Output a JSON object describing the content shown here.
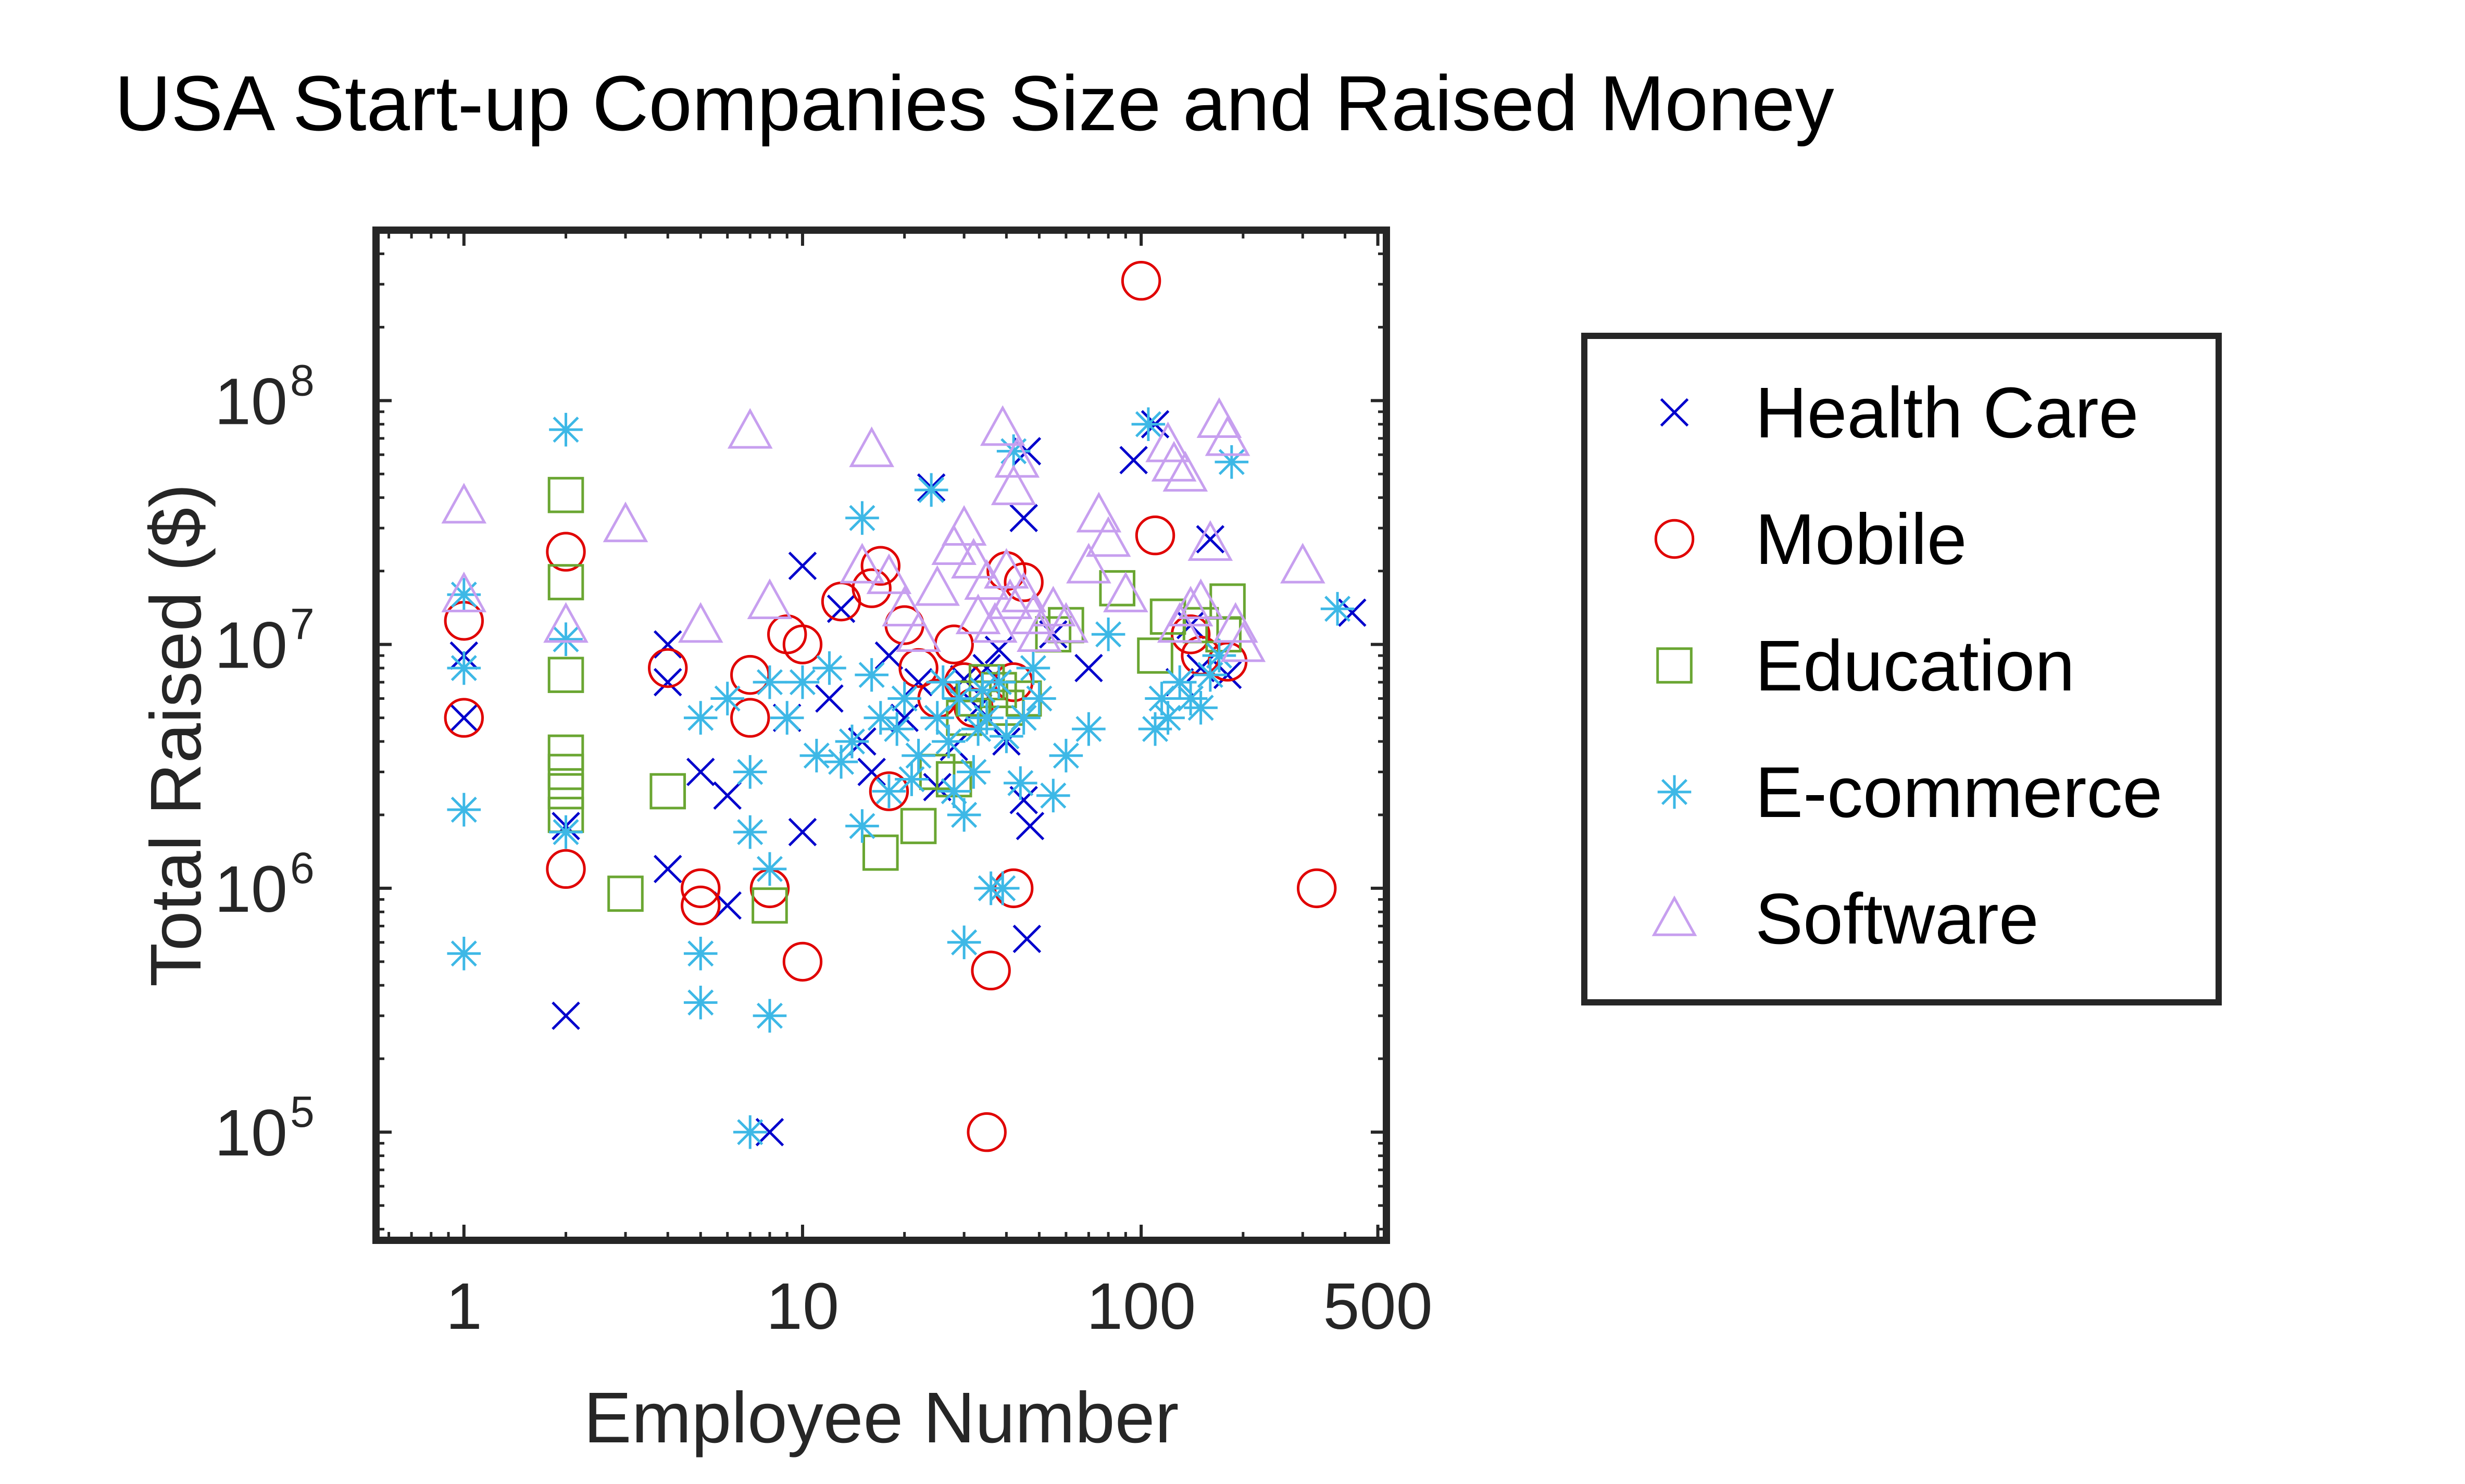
{
  "chart_data": {
    "type": "scatter",
    "title": "USA Start-up Companies Size and Raised Money",
    "xlabel": "Employee Number",
    "ylabel": "Total Raised ($)",
    "xscale": "log",
    "yscale": "log",
    "xlim": [
      0.55,
      530
    ],
    "ylim": [
      36000,
      500000000
    ],
    "xticks": [
      {
        "value": 1,
        "label": "1"
      },
      {
        "value": 10,
        "label": "10"
      },
      {
        "value": 100,
        "label": "100"
      },
      {
        "value": 500,
        "label": "500"
      }
    ],
    "yticks": [
      {
        "value": 100000,
        "base": "10",
        "exp": "5"
      },
      {
        "value": 1000000,
        "base": "10",
        "exp": "6"
      },
      {
        "value": 10000000,
        "base": "10",
        "exp": "7"
      },
      {
        "value": 100000000,
        "base": "10",
        "exp": "8"
      }
    ],
    "grid": false,
    "legend_position": "right",
    "series": [
      {
        "name": "Health Care",
        "marker": "x",
        "color": "#0000CC",
        "points": [
          [
            1,
            9000000
          ],
          [
            1,
            5000000
          ],
          [
            2,
            1800000
          ],
          [
            2,
            300000
          ],
          [
            4,
            7000000
          ],
          [
            4,
            10000000
          ],
          [
            4,
            1200000
          ],
          [
            5,
            3000000
          ],
          [
            6,
            2400000
          ],
          [
            6,
            850000
          ],
          [
            8,
            100000
          ],
          [
            9,
            5000000
          ],
          [
            10,
            21000000
          ],
          [
            10,
            1700000
          ],
          [
            12,
            6000000
          ],
          [
            13,
            14000000
          ],
          [
            15,
            4000000
          ],
          [
            16,
            3000000
          ],
          [
            18,
            9000000
          ],
          [
            20,
            5000000
          ],
          [
            22,
            7000000
          ],
          [
            24,
            44000000
          ],
          [
            25,
            2600000
          ],
          [
            28,
            3800000
          ],
          [
            30,
            7200000
          ],
          [
            33,
            5500000
          ],
          [
            35,
            8000000
          ],
          [
            38,
            9500000
          ],
          [
            40,
            4000000
          ],
          [
            45,
            33000000
          ],
          [
            46,
            62000000
          ],
          [
            45,
            2300000
          ],
          [
            47,
            1800000
          ],
          [
            46,
            620000
          ],
          [
            55,
            11000000
          ],
          [
            70,
            8000000
          ],
          [
            95,
            57000000
          ],
          [
            110,
            80000000
          ],
          [
            130,
            7000000
          ],
          [
            140,
            12000000
          ],
          [
            150,
            8000000
          ],
          [
            160,
            27000000
          ],
          [
            180,
            7500000
          ],
          [
            420,
            13500000
          ]
        ]
      },
      {
        "name": "Mobile",
        "marker": "o",
        "color": "#E00000",
        "points": [
          [
            1,
            12500000
          ],
          [
            1,
            5000000
          ],
          [
            2,
            24000000
          ],
          [
            2,
            1200000
          ],
          [
            4,
            8000000
          ],
          [
            5,
            1000000
          ],
          [
            5,
            850000
          ],
          [
            7,
            7500000
          ],
          [
            7,
            5000000
          ],
          [
            8,
            1000000
          ],
          [
            9,
            11000000
          ],
          [
            10,
            10000000
          ],
          [
            10,
            500000
          ],
          [
            13,
            15000000
          ],
          [
            16,
            17000000
          ],
          [
            17,
            21000000
          ],
          [
            18,
            2500000
          ],
          [
            20,
            12000000
          ],
          [
            22,
            8000000
          ],
          [
            25,
            6000000
          ],
          [
            28,
            10000000
          ],
          [
            30,
            7000000
          ],
          [
            32,
            5500000
          ],
          [
            35,
            100000
          ],
          [
            36,
            460000
          ],
          [
            40,
            20000000
          ],
          [
            42,
            7000000
          ],
          [
            45,
            18000000
          ],
          [
            42,
            1000000
          ],
          [
            100,
            310000000
          ],
          [
            110,
            28000000
          ],
          [
            140,
            11000000
          ],
          [
            150,
            9000000
          ],
          [
            180,
            8500000
          ],
          [
            330,
            1000000
          ]
        ]
      },
      {
        "name": "Education",
        "marker": "square",
        "color": "#6AA632",
        "points": [
          [
            2,
            41000000
          ],
          [
            2,
            18000000
          ],
          [
            2,
            7500000
          ],
          [
            2,
            3600000
          ],
          [
            2,
            3000000
          ],
          [
            2,
            2500000
          ],
          [
            2,
            2000000
          ],
          [
            3,
            950000
          ],
          [
            4,
            2500000
          ],
          [
            8,
            850000
          ],
          [
            17,
            1400000
          ],
          [
            22,
            1800000
          ],
          [
            25,
            3000000
          ],
          [
            28,
            2800000
          ],
          [
            30,
            5000000
          ],
          [
            32,
            6000000
          ],
          [
            35,
            7000000
          ],
          [
            38,
            6500000
          ],
          [
            40,
            5500000
          ],
          [
            45,
            6000000
          ],
          [
            55,
            11000000
          ],
          [
            60,
            12000000
          ],
          [
            85,
            17000000
          ],
          [
            110,
            9000000
          ],
          [
            120,
            13000000
          ],
          [
            150,
            12000000
          ],
          [
            175,
            11000000
          ],
          [
            180,
            15000000
          ]
        ]
      },
      {
        "name": "E-commerce",
        "marker": "asterisk",
        "color": "#3DB8E6",
        "points": [
          [
            1,
            16000000
          ],
          [
            1,
            8000000
          ],
          [
            1,
            2100000
          ],
          [
            1,
            540000
          ],
          [
            2,
            76000000
          ],
          [
            2,
            10500000
          ],
          [
            2,
            1700000
          ],
          [
            5,
            5000000
          ],
          [
            5,
            540000
          ],
          [
            5,
            340000
          ],
          [
            6,
            6000000
          ],
          [
            7,
            3000000
          ],
          [
            7,
            1700000
          ],
          [
            7,
            100000
          ],
          [
            8,
            7000000
          ],
          [
            8,
            1200000
          ],
          [
            8,
            300000
          ],
          [
            9,
            5000000
          ],
          [
            10,
            7000000
          ],
          [
            11,
            3500000
          ],
          [
            12,
            8000000
          ],
          [
            13,
            3300000
          ],
          [
            14,
            4000000
          ],
          [
            15,
            33000000
          ],
          [
            15,
            1800000
          ],
          [
            16,
            7500000
          ],
          [
            17,
            5000000
          ],
          [
            18,
            2500000
          ],
          [
            19,
            4500000
          ],
          [
            20,
            6000000
          ],
          [
            21,
            2800000
          ],
          [
            22,
            3500000
          ],
          [
            24,
            43000000
          ],
          [
            25,
            5000000
          ],
          [
            26,
            7000000
          ],
          [
            27,
            4000000
          ],
          [
            28,
            2500000
          ],
          [
            29,
            6000000
          ],
          [
            30,
            600000
          ],
          [
            30,
            2000000
          ],
          [
            32,
            3000000
          ],
          [
            33,
            4500000
          ],
          [
            34,
            6500000
          ],
          [
            35,
            5000000
          ],
          [
            36,
            1000000
          ],
          [
            38,
            7000000
          ],
          [
            39,
            1000000
          ],
          [
            40,
            4200000
          ],
          [
            42,
            62000000
          ],
          [
            44,
            2700000
          ],
          [
            45,
            5000000
          ],
          [
            48,
            8000000
          ],
          [
            50,
            6000000
          ],
          [
            55,
            2400000
          ],
          [
            60,
            3500000
          ],
          [
            70,
            4500000
          ],
          [
            80,
            11000000
          ],
          [
            105,
            80000000
          ],
          [
            110,
            4500000
          ],
          [
            115,
            6000000
          ],
          [
            120,
            5000000
          ],
          [
            130,
            7000000
          ],
          [
            140,
            6000000
          ],
          [
            150,
            5500000
          ],
          [
            160,
            7500000
          ],
          [
            170,
            9000000
          ],
          [
            185,
            56000000
          ],
          [
            380,
            14000000
          ]
        ]
      },
      {
        "name": "Software",
        "marker": "triangle",
        "color": "#C79FEF",
        "points": [
          [
            1,
            37000000
          ],
          [
            1,
            16000000
          ],
          [
            2,
            12000000
          ],
          [
            3,
            31000000
          ],
          [
            5,
            12000000
          ],
          [
            7,
            75000000
          ],
          [
            8,
            15000000
          ],
          [
            15,
            21000000
          ],
          [
            16,
            63000000
          ],
          [
            18,
            19000000
          ],
          [
            20,
            14000000
          ],
          [
            22,
            11000000
          ],
          [
            25,
            17000000
          ],
          [
            28,
            25000000
          ],
          [
            30,
            30000000
          ],
          [
            32,
            22000000
          ],
          [
            33,
            13000000
          ],
          [
            35,
            18000000
          ],
          [
            37,
            12000000
          ],
          [
            39,
            77000000
          ],
          [
            40,
            20000000
          ],
          [
            41,
            15000000
          ],
          [
            42,
            44000000
          ],
          [
            43,
            57000000
          ],
          [
            45,
            16000000
          ],
          [
            48,
            13000000
          ],
          [
            50,
            11000000
          ],
          [
            55,
            14000000
          ],
          [
            60,
            12000000
          ],
          [
            70,
            21000000
          ],
          [
            75,
            34000000
          ],
          [
            80,
            27000000
          ],
          [
            90,
            16000000
          ],
          [
            120,
            66000000
          ],
          [
            125,
            55000000
          ],
          [
            130,
            12000000
          ],
          [
            135,
            50000000
          ],
          [
            140,
            14000000
          ],
          [
            150,
            15000000
          ],
          [
            160,
            26000000
          ],
          [
            170,
            83000000
          ],
          [
            180,
            70000000
          ],
          [
            190,
            12000000
          ],
          [
            200,
            10000000
          ],
          [
            300,
            21000000
          ]
        ]
      }
    ]
  }
}
